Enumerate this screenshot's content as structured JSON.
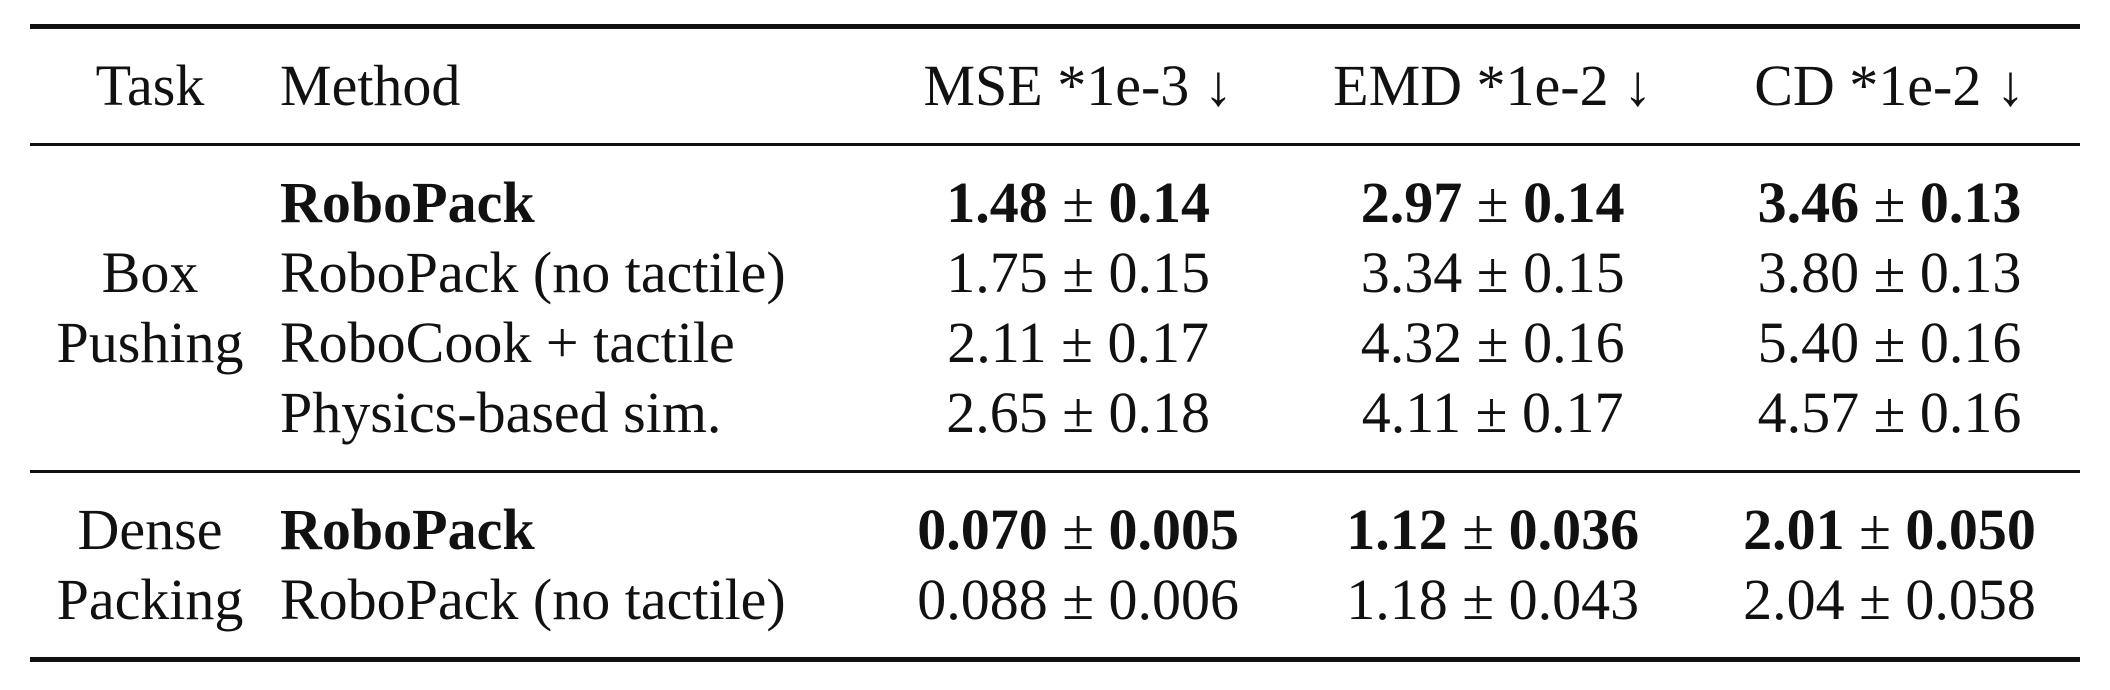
{
  "table": {
    "headers": {
      "task": "Task",
      "method": "Method",
      "mse": "MSE *1e-3 ↓",
      "emd": "EMD *1e-2 ↓",
      "cd": "CD *1e-2 ↓"
    },
    "groups": [
      {
        "task_line1": "Box",
        "task_line2": "Pushing",
        "rows": [
          {
            "method": "RoboPack",
            "mse": "1.48",
            "mse_std": "0.14",
            "emd": "2.97",
            "emd_std": "0.14",
            "cd": "3.46",
            "cd_std": "0.13",
            "bold": true
          },
          {
            "method": "RoboPack (no tactile)",
            "mse": "1.75",
            "mse_std": "0.15",
            "emd": "3.34",
            "emd_std": "0.15",
            "cd": "3.80",
            "cd_std": "0.13",
            "bold": false
          },
          {
            "method": "RoboCook + tactile",
            "mse": "2.11",
            "mse_std": "0.17",
            "emd": "4.32",
            "emd_std": "0.16",
            "cd": "5.40",
            "cd_std": "0.16",
            "bold": false
          },
          {
            "method": "Physics-based sim.",
            "mse": "2.65",
            "mse_std": "0.18",
            "emd": "4.11",
            "emd_std": "0.17",
            "cd": "4.57",
            "cd_std": "0.16",
            "bold": false
          }
        ]
      },
      {
        "task_line1": "Dense",
        "task_line2": "Packing",
        "rows": [
          {
            "method": "RoboPack",
            "mse": "0.070",
            "mse_std": "0.005",
            "emd": "1.12",
            "emd_std": "0.036",
            "cd": "2.01",
            "cd_std": "0.050",
            "bold": true
          },
          {
            "method": "RoboPack (no tactile)",
            "mse": "0.088",
            "mse_std": "0.006",
            "emd": "1.18",
            "emd_std": "0.043",
            "cd": "2.04",
            "cd_std": "0.058",
            "bold": false
          }
        ]
      }
    ],
    "pm_symbol": "±"
  }
}
